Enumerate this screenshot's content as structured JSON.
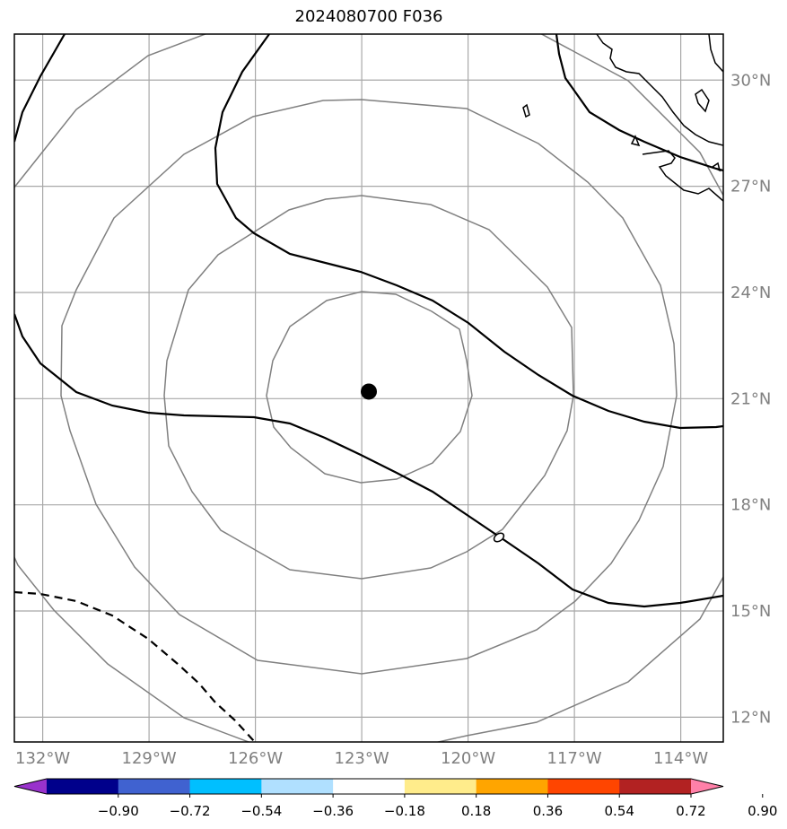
{
  "title": "2024080700 F036",
  "map": {
    "lon_range": [
      -132.8,
      -112.8
    ],
    "lat_range": [
      11.3,
      31.3
    ],
    "lat_labels": [
      "30°N",
      "27°N",
      "24°N",
      "21°N",
      "18°N",
      "15°N",
      "12°N"
    ],
    "lon_labels": [
      "132°W",
      "129°W",
      "126°W",
      "123°W",
      "120°W",
      "117°W",
      "114°W"
    ],
    "lat_ticks": [
      30,
      27,
      24,
      21,
      18,
      15,
      12
    ],
    "lon_ticks": [
      -132,
      -129,
      -126,
      -123,
      -120,
      -117,
      -114
    ],
    "center_marker": {
      "lon": -122.8,
      "lat": 21.2,
      "color": "#000000"
    },
    "grid_color": "#a8a8a8",
    "ring_color": "#808080",
    "contour_color": "#000000"
  },
  "colorbar": {
    "labels": [
      "−0.90",
      "−0.72",
      "−0.54",
      "−0.36",
      "−0.18",
      "0.18",
      "0.36",
      "0.54",
      "0.72",
      "0.90"
    ],
    "colors": [
      "#9932cc",
      "#00008b",
      "#4062d0",
      "#00bfff",
      "#b0e0ff",
      "#ffffff",
      "#ffec8b",
      "#ffa500",
      "#ff4500",
      "#b22222",
      "#ff80a8"
    ]
  }
}
